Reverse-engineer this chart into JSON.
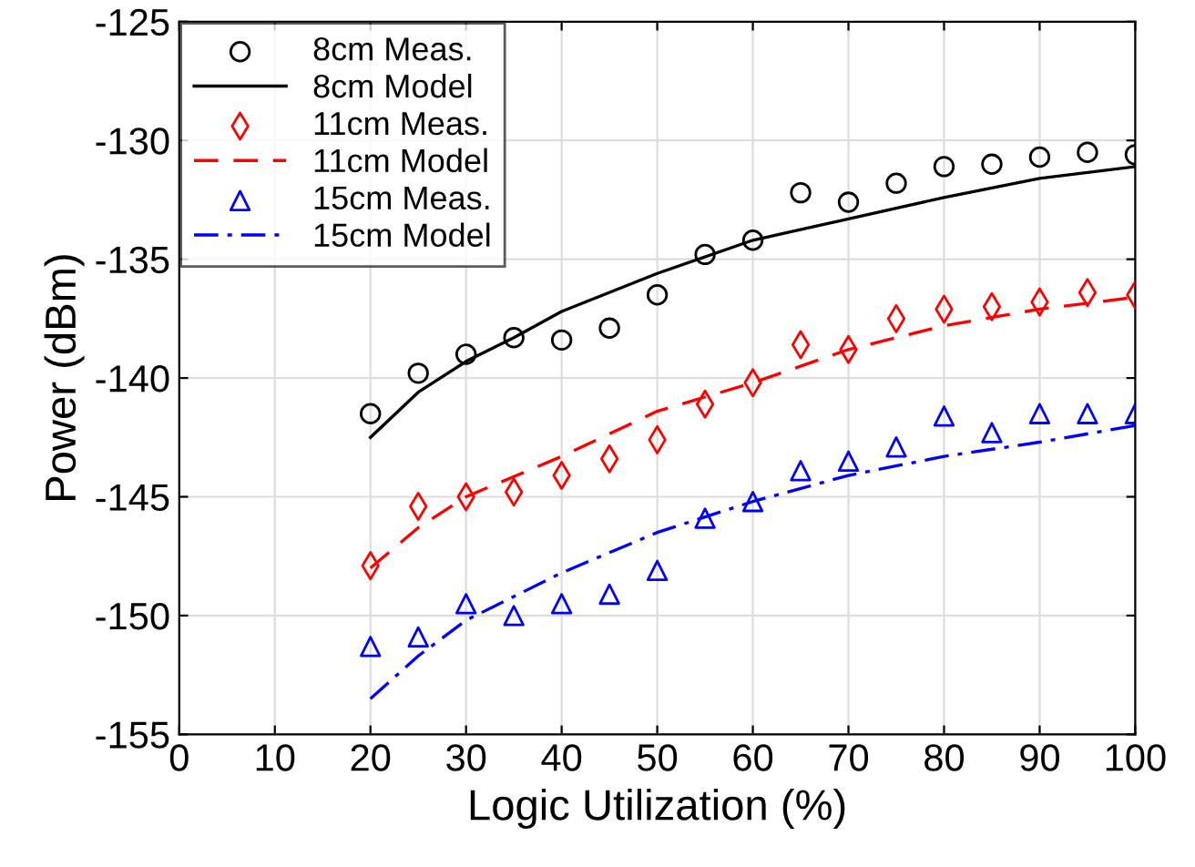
{
  "chart_data": {
    "type": "scatter",
    "xlabel": "Logic Utilization (%)",
    "ylabel": "Power (dBm)",
    "xlim": [
      0,
      100
    ],
    "ylim": [
      -155,
      -125
    ],
    "xticks": [
      0,
      10,
      20,
      30,
      40,
      50,
      60,
      70,
      80,
      90,
      100
    ],
    "yticks": [
      -155,
      -150,
      -145,
      -140,
      -135,
      -130,
      -125
    ],
    "grid": true,
    "legend": "top left",
    "series": [
      {
        "name": "8cm Meas.",
        "marker": "circle",
        "color": "#000000",
        "x": [
          20,
          25,
          30,
          35,
          40,
          45,
          50,
          55,
          60,
          65,
          70,
          75,
          80,
          85,
          90,
          95,
          100
        ],
        "values": [
          -141.5,
          -139.8,
          -139.0,
          -138.3,
          -138.4,
          -137.9,
          -136.5,
          -134.8,
          -134.2,
          -132.2,
          -132.6,
          -131.8,
          -131.1,
          -131.0,
          -130.7,
          -130.5,
          -130.6
        ]
      },
      {
        "name": "8cm Model",
        "type": "line",
        "line_style": "solid",
        "color": "#000000",
        "x": [
          20,
          25,
          30,
          35,
          40,
          50,
          60,
          70,
          80,
          90,
          100
        ],
        "values": [
          -142.5,
          -140.6,
          -139.3,
          -138.3,
          -137.2,
          -135.6,
          -134.2,
          -133.3,
          -132.4,
          -131.6,
          -131.1
        ]
      },
      {
        "name": "11cm Meas.",
        "marker": "diamond",
        "color": "#ff0000",
        "x": [
          20,
          25,
          30,
          35,
          40,
          45,
          50,
          55,
          60,
          65,
          70,
          75,
          80,
          85,
          90,
          95,
          100
        ],
        "values": [
          -147.9,
          -145.4,
          -145.0,
          -144.8,
          -144.1,
          -143.4,
          -142.6,
          -141.1,
          -140.2,
          -138.6,
          -138.8,
          -137.5,
          -137.1,
          -137.0,
          -136.8,
          -136.4,
          -136.5
        ]
      },
      {
        "name": "11cm Model",
        "type": "line",
        "line_style": "dashed",
        "color": "#ff0000",
        "x": [
          20,
          25,
          30,
          40,
          50,
          60,
          70,
          80,
          90,
          100
        ],
        "values": [
          -148.0,
          -146.3,
          -145.0,
          -143.3,
          -141.4,
          -140.2,
          -138.8,
          -137.8,
          -137.1,
          -136.6
        ]
      },
      {
        "name": "15cm Meas.",
        "marker": "triangle",
        "color": "#0000ff",
        "x": [
          20,
          25,
          30,
          35,
          40,
          45,
          50,
          55,
          60,
          65,
          70,
          75,
          80,
          85,
          90,
          95,
          100
        ],
        "values": [
          -151.3,
          -150.9,
          -149.5,
          -150.0,
          -149.5,
          -149.1,
          -148.1,
          -145.9,
          -145.2,
          -143.9,
          -143.5,
          -142.9,
          -141.6,
          -142.3,
          -141.5,
          -141.5,
          -141.5
        ]
      },
      {
        "name": "15cm Model",
        "type": "line",
        "line_style": "dashdot",
        "color": "#0000ff",
        "x": [
          20,
          25,
          30,
          40,
          50,
          60,
          70,
          80,
          90,
          100
        ],
        "values": [
          -153.5,
          -151.7,
          -150.2,
          -148.2,
          -146.5,
          -145.2,
          -144.1,
          -143.3,
          -142.7,
          -142.0
        ]
      }
    ]
  }
}
